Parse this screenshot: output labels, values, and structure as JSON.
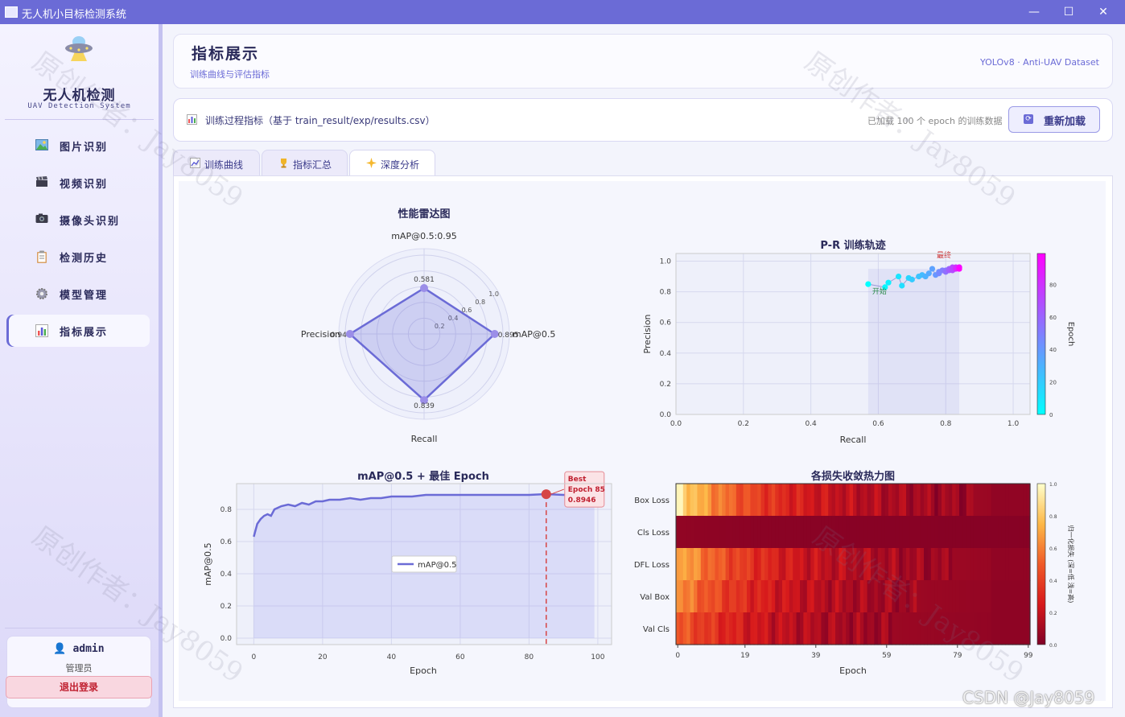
{
  "window": {
    "title": "无人机小目标检测系统",
    "controls": [
      "—",
      "☐",
      "✕"
    ]
  },
  "sidebar": {
    "brand_title": "无人机检测",
    "brand_subtitle": "UAV Detection System",
    "items": [
      {
        "icon": "picture-icon",
        "label": "图片识别"
      },
      {
        "icon": "video-icon",
        "label": "视频识别"
      },
      {
        "icon": "camera-icon",
        "label": "摄像头识别"
      },
      {
        "icon": "history-icon",
        "label": "检测历史"
      },
      {
        "icon": "gear-icon",
        "label": "模型管理"
      },
      {
        "icon": "chart-icon",
        "label": "指标展示",
        "active": true
      }
    ],
    "user": {
      "name": "admin",
      "role": "管理员",
      "logout_label": "退出登录"
    }
  },
  "header": {
    "title": "指标展示",
    "subtitle": "训练曲线与评估指标",
    "right_text": "YOLOv8 · Anti-UAV Dataset"
  },
  "toolbar": {
    "text": "训练过程指标（基于 train_result/exp/results.csv）",
    "status": "已加载 100 个 epoch 的训练数据",
    "reload_label": "重新加载"
  },
  "tabs": [
    {
      "label": "训练曲线",
      "icon": "line-chart-icon"
    },
    {
      "label": "指标汇总",
      "icon": "trophy-icon"
    },
    {
      "label": "深度分析",
      "icon": "sparkle-icon",
      "active": true
    }
  ],
  "watermark": {
    "text": "原创作者：Jay8059",
    "csdn": "CSDN @Jay8059"
  },
  "chart_data": [
    {
      "type": "radar",
      "title": "性能雷达图",
      "axes": [
        "mAP@0.5:0.95",
        "mAP@0.5",
        "Recall",
        "Precision"
      ],
      "values": [
        0.581,
        0.895,
        0.839,
        0.94
      ],
      "value_labels": [
        "0.581",
        "0.895",
        "0.839",
        "0.94"
      ],
      "radial_ticks": [
        "0.2",
        "0.4",
        "0.6",
        "0.8",
        "1.0"
      ],
      "rmax": 1.0,
      "color": "#6b6bd6"
    },
    {
      "type": "scatter",
      "title": "P-R 训练轨迹",
      "xlabel": "Recall",
      "ylabel": "Precision",
      "xlim": [
        0.0,
        1.05
      ],
      "ylim": [
        0.0,
        1.05
      ],
      "xticks": [
        "0.0",
        "0.2",
        "0.4",
        "0.6",
        "0.8",
        "1.0"
      ],
      "yticks": [
        "0.0",
        "0.2",
        "0.4",
        "0.6",
        "0.8",
        "1.0"
      ],
      "colorbar_label": "Epoch",
      "colorbar_ticks": [
        "0",
        "20",
        "40",
        "60",
        "80"
      ],
      "annotations": {
        "start": "开始",
        "end": "最终"
      },
      "recall": [
        0.57,
        0.62,
        0.63,
        0.66,
        0.67,
        0.69,
        0.7,
        0.72,
        0.73,
        0.74,
        0.75,
        0.76,
        0.77,
        0.78,
        0.78,
        0.79,
        0.8,
        0.8,
        0.81,
        0.81,
        0.82,
        0.82,
        0.82,
        0.83,
        0.83,
        0.83,
        0.84,
        0.84,
        0.84,
        0.84
      ],
      "precision": [
        0.85,
        0.83,
        0.86,
        0.9,
        0.84,
        0.89,
        0.88,
        0.9,
        0.91,
        0.9,
        0.92,
        0.95,
        0.91,
        0.93,
        0.92,
        0.94,
        0.94,
        0.93,
        0.95,
        0.94,
        0.95,
        0.94,
        0.96,
        0.95,
        0.96,
        0.95,
        0.96,
        0.95,
        0.96,
        0.95
      ],
      "epoch": [
        0,
        3,
        6,
        10,
        13,
        16,
        20,
        23,
        26,
        30,
        33,
        36,
        40,
        43,
        46,
        50,
        53,
        56,
        60,
        63,
        66,
        70,
        73,
        76,
        80,
        83,
        86,
        90,
        94,
        99
      ]
    },
    {
      "type": "line",
      "title": "mAP@0.5 + 最佳 Epoch",
      "xlabel": "Epoch",
      "ylabel": "mAP@0.5",
      "xlim": [
        -5,
        104
      ],
      "ylim": [
        -0.04,
        0.96
      ],
      "xticks": [
        "0",
        "20",
        "40",
        "60",
        "80",
        "100"
      ],
      "yticks": [
        "0.0",
        "0.2",
        "0.4",
        "0.6",
        "0.8"
      ],
      "legend": "mAP@0.5",
      "best": {
        "epoch": 85,
        "value": 0.8946,
        "label_lines": [
          "Best",
          "Epoch 85",
          "0.8946"
        ]
      },
      "x": [
        0,
        1,
        2,
        3,
        4,
        5,
        6,
        7,
        8,
        10,
        12,
        14,
        16,
        18,
        20,
        22,
        25,
        28,
        31,
        34,
        37,
        40,
        43,
        46,
        50,
        55,
        60,
        65,
        70,
        75,
        80,
        85,
        90,
        95,
        99
      ],
      "values": [
        0.63,
        0.71,
        0.74,
        0.76,
        0.77,
        0.76,
        0.8,
        0.81,
        0.82,
        0.83,
        0.82,
        0.84,
        0.83,
        0.85,
        0.85,
        0.86,
        0.86,
        0.87,
        0.86,
        0.87,
        0.87,
        0.88,
        0.88,
        0.88,
        0.89,
        0.89,
        0.89,
        0.89,
        0.89,
        0.89,
        0.89,
        0.895,
        0.89,
        0.89,
        0.89
      ]
    },
    {
      "type": "heatmap",
      "title": "各损失收敛热力图",
      "xlabel": "Epoch",
      "rows": [
        "Box Loss",
        "Cls Loss",
        "DFL Loss",
        "Val Box",
        "Val Cls"
      ],
      "xticks": [
        "0",
        "19",
        "39",
        "59",
        "79",
        "99"
      ],
      "colorbar_label": "归一化损失 (深=低 浅=高)",
      "colorbar_ticks": [
        "0.0",
        "0.2",
        "0.4",
        "0.6",
        "0.8",
        "1.0"
      ],
      "row_start": [
        0.92,
        0.05,
        0.75,
        0.65,
        0.5
      ],
      "row_end": [
        0.05,
        0.02,
        0.05,
        0.04,
        0.04
      ]
    }
  ]
}
